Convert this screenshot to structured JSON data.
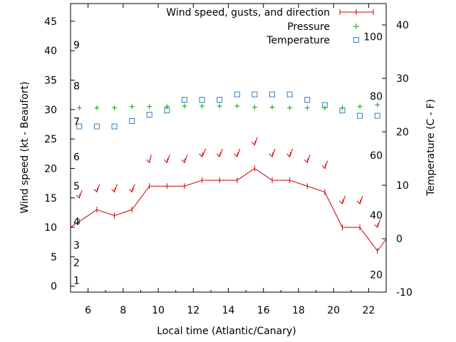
{
  "chart_data": {
    "type": "line",
    "xlabel": "Local time (Atlantic/Canary)",
    "ylabel": "Wind speed (kt - Beaufort)",
    "y2label": "Temperature (C - F)",
    "xlim": [
      5,
      23
    ],
    "ylim": [
      -1,
      48
    ],
    "y2lim": [
      -10,
      44
    ],
    "x_ticks": [
      6,
      8,
      10,
      12,
      14,
      16,
      18,
      20,
      22
    ],
    "y_ticks": [
      0,
      5,
      10,
      15,
      20,
      25,
      30,
      35,
      40,
      45
    ],
    "y2_ticks": [
      -10,
      0,
      10,
      20,
      30,
      40
    ],
    "beaufort_labels": [
      {
        "label": "1",
        "kt": 1
      },
      {
        "label": "2",
        "kt": 4
      },
      {
        "label": "3",
        "kt": 7
      },
      {
        "label": "4",
        "kt": 11
      },
      {
        "label": "5",
        "kt": 17
      },
      {
        "label": "6",
        "kt": 22
      },
      {
        "label": "7",
        "kt": 28
      },
      {
        "label": "8",
        "kt": 34
      },
      {
        "label": "9",
        "kt": 41
      }
    ],
    "fahrenheit_labels": [
      {
        "label": "20",
        "c": -6.7
      },
      {
        "label": "40",
        "c": 4.4
      },
      {
        "label": "60",
        "c": 15.6
      },
      {
        "label": "80",
        "c": 26.7
      },
      {
        "label": "100",
        "c": 37.8
      }
    ],
    "legend_position": "top-right",
    "series": [
      {
        "name": "Wind speed, gusts, and direction",
        "color": "#cc0000",
        "x": [
          5,
          5.5,
          6.5,
          7.5,
          8.5,
          9.5,
          10.5,
          11.5,
          12.5,
          13.5,
          14.5,
          15.5,
          16.5,
          17.5,
          18.5,
          19.5,
          20.5,
          21.5,
          22.5,
          23
        ],
        "y": [
          10,
          11,
          13,
          12,
          13,
          17,
          17,
          17,
          18,
          18,
          18,
          20,
          18,
          18,
          17,
          16,
          10,
          10,
          6,
          8
        ]
      },
      {
        "name": "Pressure",
        "color": "#00aa00",
        "x": [
          5.5,
          6.5,
          7.5,
          8.5,
          9.5,
          10.5,
          11.5,
          12.5,
          13.5,
          14.5,
          15.5,
          16.5,
          17.5,
          18.5,
          19.5,
          20.5,
          21.5,
          22.5
        ],
        "y": [
          30.3,
          30.3,
          30.3,
          30.5,
          30.5,
          30.5,
          30.6,
          30.6,
          30.6,
          30.6,
          30.4,
          30.4,
          30.3,
          30.3,
          30.3,
          30.3,
          30.5,
          30.8
        ]
      },
      {
        "name": "Temperature",
        "color": "#3080c0",
        "x": [
          5.5,
          6.5,
          7.5,
          8.5,
          9.5,
          10.5,
          11.5,
          12.5,
          13.5,
          14.5,
          15.5,
          16.5,
          17.5,
          18.5,
          19.5,
          20.5,
          21.5,
          22.5
        ],
        "y": [
          21,
          21,
          21,
          22,
          23.2,
          24,
          26,
          26,
          26,
          27,
          27,
          27,
          27,
          26,
          25,
          24,
          23,
          23
        ]
      }
    ],
    "direction_arrows": {
      "color": "#cc0000",
      "x": [
        5.5,
        6.5,
        7.5,
        8.5,
        9.5,
        10.5,
        11.5,
        12.5,
        13.5,
        14.5,
        15.5,
        16.5,
        17.5,
        18.5,
        19.5,
        20.5,
        21.5,
        22.5
      ],
      "y": [
        15,
        16,
        16,
        16,
        21,
        21,
        21,
        22,
        22,
        22,
        24,
        22,
        22,
        21,
        20,
        14,
        14,
        10
      ],
      "dx": [
        3,
        3,
        3,
        3,
        2,
        3,
        3,
        4,
        3,
        3,
        3,
        3,
        3,
        3,
        3,
        3,
        3,
        3
      ]
    }
  }
}
